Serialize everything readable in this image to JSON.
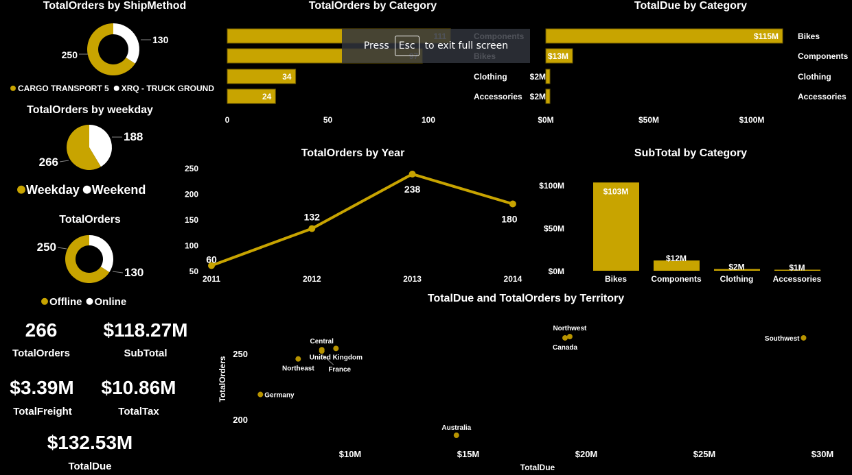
{
  "colors": {
    "accent": "#c8a400",
    "secondary": "#ffffff",
    "background": "#000000"
  },
  "fullscreen_toast": {
    "press": "Press",
    "key": "Esc",
    "rest": "to exit full screen"
  },
  "kpis": [
    {
      "value": "266",
      "label": "TotalOrders"
    },
    {
      "value": "$118.27M",
      "label": "SubTotal"
    },
    {
      "value": "$3.39M",
      "label": "TotalFreight"
    },
    {
      "value": "$10.86M",
      "label": "TotalTax"
    },
    {
      "value": "$132.53M",
      "label": "TotalDue"
    }
  ],
  "chart_data": [
    {
      "id": "shipmethod",
      "type": "donut",
      "title": "TotalOrders by ShipMethod",
      "categories": [
        "CARGO TRANSPORT 5",
        "XRQ - TRUCK GROUND"
      ],
      "values": [
        250,
        130
      ],
      "colors": [
        "#c8a400",
        "#ffffff"
      ],
      "legend": "bottom"
    },
    {
      "id": "weekday",
      "type": "pie",
      "title": "TotalOrders by weekday",
      "categories": [
        "Weekday",
        "Weekend"
      ],
      "values": [
        266,
        188
      ],
      "colors": [
        "#c8a400",
        "#ffffff"
      ],
      "legend": "bottom"
    },
    {
      "id": "orders",
      "type": "donut",
      "title": "TotalOrders",
      "categories": [
        "Offline",
        "Online"
      ],
      "values": [
        250,
        130
      ],
      "colors": [
        "#c8a400",
        "#ffffff"
      ],
      "legend": "bottom"
    },
    {
      "id": "orders_by_cat",
      "type": "bar",
      "orientation": "horizontal",
      "title": "TotalOrders by Category",
      "categories": [
        "Components",
        "Bikes",
        "Clothing",
        "Accessories"
      ],
      "values": [
        111,
        97,
        34,
        24
      ],
      "labels": [
        "111",
        "97",
        "34",
        "24"
      ],
      "xticks": [
        "0",
        "50",
        "100"
      ],
      "xtick_values": [
        0,
        50,
        100
      ]
    },
    {
      "id": "due_by_cat",
      "type": "bar",
      "orientation": "horizontal",
      "title": "TotalDue by Category",
      "categories": [
        "Bikes",
        "Components",
        "Clothing",
        "Accessories"
      ],
      "values": [
        115,
        13,
        2,
        2
      ],
      "unit": "$M",
      "labels": [
        "$115M",
        "$13M",
        "$2M",
        "$2M"
      ],
      "xticks": [
        "$0M",
        "$50M",
        "$100M"
      ],
      "xtick_values": [
        0,
        50,
        100
      ]
    },
    {
      "id": "orders_by_year",
      "type": "line",
      "title": "TotalOrders by Year",
      "x": [
        "2011",
        "2012",
        "2013",
        "2014"
      ],
      "values": [
        60,
        132,
        238,
        180
      ],
      "labels": [
        "60",
        "132",
        "238",
        "180"
      ],
      "yticks": [
        "50",
        "100",
        "150",
        "200",
        "250"
      ],
      "ytick_values": [
        50,
        100,
        150,
        200,
        250
      ]
    },
    {
      "id": "subtotal_by_cat",
      "type": "bar",
      "orientation": "vertical",
      "title": "SubTotal by Category",
      "categories": [
        "Bikes",
        "Components",
        "Clothing",
        "Accessories"
      ],
      "values": [
        103,
        12,
        2,
        1
      ],
      "unit": "$M",
      "labels": [
        "$103M",
        "$12M",
        "$2M",
        "$1M"
      ],
      "yticks": [
        "$0M",
        "$50M",
        "$100M"
      ],
      "ytick_values": [
        0,
        50,
        100
      ]
    },
    {
      "id": "territory",
      "type": "scatter",
      "title": "TotalDue and TotalOrders by Territory",
      "xlabel": "TotalDue",
      "ylabel": "TotalOrders",
      "xunit": "$M",
      "points": [
        {
          "label": "Germany",
          "x": 6.2,
          "y": 219
        },
        {
          "label": "Northeast",
          "x": 7.8,
          "y": 246
        },
        {
          "label": "Central",
          "x": 8.8,
          "y": 253
        },
        {
          "label": "France",
          "x": 8.8,
          "y": 252
        },
        {
          "label": "United Kingdom",
          "x": 9.4,
          "y": 254
        },
        {
          "label": "Australia",
          "x": 14.5,
          "y": 188
        },
        {
          "label": "Canada",
          "x": 19.1,
          "y": 262
        },
        {
          "label": "Northwest",
          "x": 19.3,
          "y": 263
        },
        {
          "label": "Southwest",
          "x": 29.2,
          "y": 262
        }
      ],
      "xticks": [
        "$10M",
        "$15M",
        "$20M",
        "$25M",
        "$30M"
      ],
      "xtick_values": [
        10,
        15,
        20,
        25,
        30
      ],
      "yticks": [
        "200",
        "250"
      ],
      "ytick_values": [
        200,
        250
      ]
    }
  ]
}
